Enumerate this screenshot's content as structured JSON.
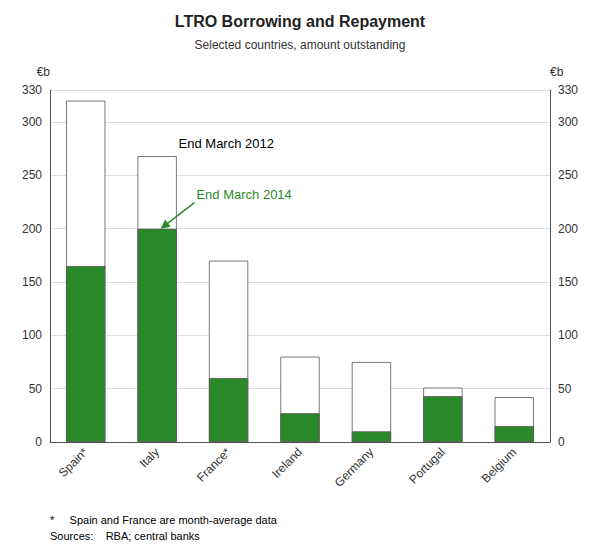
{
  "chart_data": {
    "type": "bar",
    "title": "LTRO Borrowing and Repayment",
    "subtitle": "Selected countries, amount outstanding",
    "categories": [
      "Spain*",
      "Italy",
      "France*",
      "Ireland",
      "Germany",
      "Portugal",
      "Belgium"
    ],
    "series": [
      {
        "name": "End March 2012",
        "color": "#ffffff",
        "values": [
          320,
          268,
          170,
          80,
          75,
          51,
          42
        ]
      },
      {
        "name": "End March 2014",
        "color": "#2a8a2a",
        "values": [
          165,
          200,
          60,
          27,
          10,
          43,
          15
        ]
      }
    ],
    "ylabel": "€b",
    "y2label": "€b",
    "ylim": [
      0,
      330
    ],
    "yticks": [
      0,
      50,
      100,
      150,
      200,
      250,
      300
    ],
    "y2lim": [
      0,
      330
    ],
    "y2ticks": [
      0,
      50,
      100,
      150,
      200,
      250,
      300
    ],
    "grid": true,
    "footnote": [
      "*     Spain and France are month-average data",
      "Sources:    RBA; central banks"
    ]
  }
}
